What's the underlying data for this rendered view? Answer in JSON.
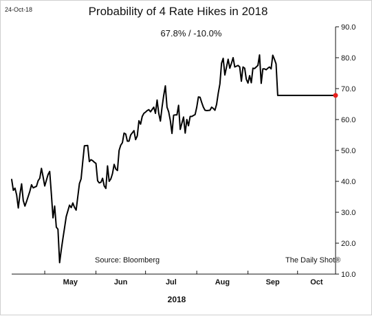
{
  "header": {
    "date": "24-Oct-18",
    "title": "Probability of 4 Rate Hikes in 2018",
    "subtitle": "67.8%  /  -10.0%"
  },
  "footer": {
    "source": "Source: Bloomberg",
    "brand": "The Daily Shot®"
  },
  "chart_data": {
    "type": "line",
    "title": "Probability of 4 Rate Hikes in 2018",
    "subtitle": "67.8%  /  -10.0%",
    "xlabel": "2018",
    "ylabel": "",
    "ylim": [
      10,
      90
    ],
    "y_ticks": [
      "10.0",
      "20.0",
      "30.0",
      "40.0",
      "50.0",
      "60.0",
      "70.0",
      "80.0",
      "90.0"
    ],
    "x_range": [
      "2018-04-11",
      "2018-10-24"
    ],
    "x_ticks": [
      "2018-05-01",
      "2018-06-01",
      "2018-07-01",
      "2018-08-01",
      "2018-09-01",
      "2018-10-01"
    ],
    "x_tick_labels": [
      "May",
      "Jun",
      "Jul",
      "Aug",
      "Sep",
      "Oct"
    ],
    "y_axis_side": "right",
    "grid": false,
    "line_color": "#000000",
    "marker_color": "#e8201c",
    "series": [
      {
        "x": [
          "2018-04-11",
          "2018-04-12",
          "2018-04-13",
          "2018-04-14",
          "2018-04-15",
          "2018-04-16",
          "2018-04-17",
          "2018-04-18",
          "2018-04-19",
          "2018-04-20",
          "2018-04-22",
          "2018-04-23",
          "2018-04-24",
          "2018-04-26",
          "2018-04-27",
          "2018-04-28",
          "2018-04-29",
          "2018-04-30",
          "2018-05-01",
          "2018-05-03",
          "2018-05-04",
          "2018-05-05",
          "2018-05-06",
          "2018-05-07",
          "2018-05-08",
          "2018-05-09",
          "2018-05-10",
          "2018-05-11",
          "2018-05-12",
          "2018-05-13",
          "2018-05-14",
          "2018-05-16",
          "2018-05-17",
          "2018-05-18",
          "2018-05-19",
          "2018-05-20",
          "2018-05-21",
          "2018-05-22",
          "2018-05-23",
          "2018-05-24",
          "2018-05-25",
          "2018-05-27",
          "2018-05-28",
          "2018-05-29",
          "2018-05-30",
          "2018-05-31",
          "2018-06-01",
          "2018-06-02",
          "2018-06-03",
          "2018-06-04",
          "2018-06-05",
          "2018-06-06",
          "2018-06-07",
          "2018-06-08",
          "2018-06-09",
          "2018-06-10",
          "2018-06-11",
          "2018-06-12",
          "2018-06-13",
          "2018-06-14",
          "2018-06-15",
          "2018-06-16",
          "2018-06-17",
          "2018-06-18",
          "2018-06-19",
          "2018-06-20",
          "2018-06-21",
          "2018-06-22",
          "2018-06-24",
          "2018-06-25",
          "2018-06-26",
          "2018-06-27",
          "2018-06-28",
          "2018-06-29",
          "2018-06-30",
          "2018-07-01",
          "2018-07-02",
          "2018-07-03",
          "2018-07-04",
          "2018-07-06",
          "2018-07-07",
          "2018-07-08",
          "2018-07-09",
          "2018-07-10",
          "2018-07-11",
          "2018-07-12",
          "2018-07-13",
          "2018-07-14",
          "2018-07-15",
          "2018-07-16",
          "2018-07-17",
          "2018-07-18",
          "2018-07-19",
          "2018-07-20",
          "2018-07-21",
          "2018-07-22",
          "2018-07-24",
          "2018-07-25",
          "2018-07-26",
          "2018-07-27",
          "2018-07-28",
          "2018-07-29",
          "2018-07-31",
          "2018-08-01",
          "2018-08-02",
          "2018-08-03",
          "2018-08-04",
          "2018-08-05",
          "2018-08-06",
          "2018-08-07",
          "2018-08-09",
          "2018-08-10",
          "2018-08-11",
          "2018-08-12",
          "2018-08-13",
          "2018-08-14",
          "2018-08-15",
          "2018-08-16",
          "2018-08-17",
          "2018-08-18",
          "2018-08-20",
          "2018-08-21",
          "2018-08-22",
          "2018-08-23",
          "2018-08-24",
          "2018-08-26",
          "2018-08-27",
          "2018-08-28",
          "2018-08-29",
          "2018-08-30",
          "2018-08-31",
          "2018-09-01",
          "2018-09-02",
          "2018-09-03",
          "2018-09-04",
          "2018-09-05",
          "2018-09-06",
          "2018-09-07",
          "2018-09-08",
          "2018-09-09",
          "2018-09-10",
          "2018-09-11",
          "2018-09-12",
          "2018-09-13",
          "2018-09-14",
          "2018-09-15",
          "2018-09-16",
          "2018-09-17",
          "2018-09-18",
          "2018-09-19",
          "2018-09-20",
          "2018-09-21",
          "2018-09-22",
          "2018-09-23",
          "2018-09-24",
          "2018-09-25",
          "2018-09-26",
          "2018-09-27",
          "2018-09-28",
          "2018-09-29",
          "2018-09-30",
          "2018-10-01",
          "2018-10-02",
          "2018-10-03",
          "2018-10-04",
          "2018-10-05",
          "2018-10-06",
          "2018-10-07",
          "2018-10-08",
          "2018-10-09",
          "2018-10-10",
          "2018-10-11",
          "2018-10-12",
          "2018-10-14",
          "2018-10-15",
          "2018-10-16",
          "2018-10-17",
          "2018-10-18",
          "2018-10-19",
          "2018-10-21",
          "2018-10-22",
          "2018-10-23",
          "2018-10-24"
        ],
        "y": [
          40.6,
          37.1,
          37.8,
          35.6,
          31.4,
          35.9,
          39.2,
          33.8,
          32.0,
          33.5,
          36.8,
          38.9,
          37.9,
          38.4,
          40.2,
          41.0,
          44.2,
          41.5,
          38.5,
          42.2,
          43.2,
          36.0,
          28.2,
          32.0,
          25.2,
          24.5,
          13.7,
          17.8,
          21.5,
          25.0,
          28.6,
          32.3,
          31.5,
          33.0,
          31.6,
          30.7,
          35.0,
          39.3,
          40.8,
          46.3,
          51.5,
          51.6,
          46.4,
          47.0,
          46.7,
          46.2,
          45.8,
          40.2,
          39.5,
          39.7,
          41.0,
          38.5,
          37.7,
          45.0,
          40.0,
          40.8,
          42.5,
          45.5,
          44.0,
          43.5,
          50.0,
          51.7,
          52.5,
          55.6,
          55.3,
          53.0,
          53.0,
          55.0,
          56.4,
          53.5,
          54.7,
          59.6,
          58.5,
          61.0,
          62.0,
          62.4,
          62.9,
          63.2,
          62.5,
          64.0,
          62.0,
          66.3,
          62.0,
          59.5,
          64.0,
          67.8,
          70.9,
          64.0,
          62.5,
          59.7,
          55.5,
          61.4,
          61.5,
          61.5,
          64.6,
          56.8,
          60.8,
          55.6,
          60.0,
          58.0,
          61.0,
          61.0,
          61.6,
          64.0,
          67.3,
          67.2,
          65.5,
          64.0,
          63.0,
          62.9,
          63.0,
          64.0,
          63.6,
          63.0,
          64.9,
          68.5,
          71.5,
          78.2,
          79.8,
          74.4,
          79.5,
          76.6,
          78.2,
          80.0,
          77.0,
          77.5,
          77.0,
          72.4,
          77.0,
          76.6,
          73.0,
          71.8,
          74.2,
          71.9,
          76.6,
          76.5,
          77.0,
          77.5,
          80.9,
          71.7,
          76.4,
          76.4,
          76.1,
          76.6,
          77.0,
          76.4,
          80.8,
          79.5,
          78.0,
          67.8,
          67.8,
          67.8,
          67.8,
          67.8,
          67.8,
          67.8,
          67.8,
          67.8,
          67.8,
          67.8,
          67.8,
          67.8,
          67.8,
          67.8,
          67.8,
          67.8,
          67.8,
          67.8,
          67.8,
          67.8,
          67.8,
          67.8,
          67.8,
          67.8,
          67.8,
          67.8,
          67.8,
          67.8,
          67.8,
          67.8,
          67.8,
          67.8,
          67.8
        ]
      }
    ]
  }
}
